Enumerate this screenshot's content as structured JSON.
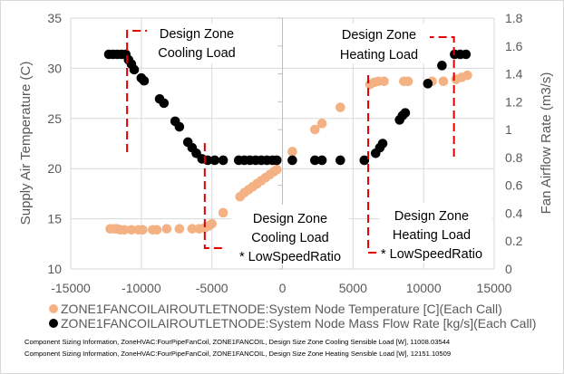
{
  "chart_data": {
    "type": "scatter",
    "xlim": [
      -15000,
      15000
    ],
    "xticks": [
      "-15000",
      "-10000",
      "-5000",
      "0",
      "5000",
      "10000",
      "15000"
    ],
    "y_left": {
      "label": "Supply Air Temperature (C)",
      "lim": [
        10,
        35
      ],
      "ticks": [
        "10",
        "15",
        "20",
        "25",
        "30",
        "35"
      ]
    },
    "y_right": {
      "label": "Fan Airflow Rate (m3/s)",
      "lim": [
        0,
        1.8
      ],
      "ticks": [
        "0",
        "0.2",
        "0.4",
        "0.6",
        "0.8",
        "1",
        "1.2",
        "1.4",
        "1.6",
        "1.8"
      ]
    },
    "grid": true,
    "legend_position": "bottom",
    "series": [
      {
        "name": "ZONE1FANCOILAIROUTLETNODE:System Node Temperature [C](Each Call)",
        "axis": "left",
        "color": "#f4b183",
        "points": [
          [
            -12200,
            14.0
          ],
          [
            -11900,
            14.0
          ],
          [
            -11700,
            14.0
          ],
          [
            -11500,
            13.9
          ],
          [
            -11200,
            13.9
          ],
          [
            -10700,
            13.9
          ],
          [
            -10200,
            13.9
          ],
          [
            -9900,
            13.9
          ],
          [
            -9200,
            13.9
          ],
          [
            -8900,
            13.9
          ],
          [
            -8200,
            14.0
          ],
          [
            -7300,
            14.0
          ],
          [
            -6400,
            14.0
          ],
          [
            -5900,
            14.0
          ],
          [
            -5500,
            14.1
          ],
          [
            -5200,
            14.3
          ],
          [
            -5000,
            14.5
          ],
          [
            -4200,
            15.6
          ],
          [
            -3000,
            17.2
          ],
          [
            -2700,
            17.6
          ],
          [
            -2400,
            17.9
          ],
          [
            -2100,
            18.2
          ],
          [
            -1800,
            18.5
          ],
          [
            -1500,
            18.8
          ],
          [
            -1200,
            19.1
          ],
          [
            -900,
            19.4
          ],
          [
            -600,
            19.7
          ],
          [
            -400,
            19.9
          ],
          [
            700,
            21.7
          ],
          [
            2300,
            23.9
          ],
          [
            2800,
            24.5
          ],
          [
            4100,
            26.1
          ],
          [
            6200,
            28.4
          ],
          [
            6500,
            28.6
          ],
          [
            6800,
            28.7
          ],
          [
            7200,
            28.7
          ],
          [
            8600,
            28.7
          ],
          [
            8900,
            28.7
          ],
          [
            10600,
            28.7
          ],
          [
            11400,
            28.7
          ],
          [
            12300,
            28.9
          ],
          [
            12700,
            29.1
          ],
          [
            13100,
            29.3
          ]
        ]
      },
      {
        "name": "ZONE1FANCOILAIROUTLETNODE:System Node Mass Flow Rate [kg/s](Each Call)",
        "axis": "right",
        "color": "#000000",
        "points": [
          [
            -12300,
            1.54
          ],
          [
            -12000,
            1.54
          ],
          [
            -11700,
            1.54
          ],
          [
            -11400,
            1.54
          ],
          [
            -11100,
            1.54
          ],
          [
            -10900,
            1.5
          ],
          [
            -10700,
            1.47
          ],
          [
            -10500,
            1.43
          ],
          [
            -10000,
            1.37
          ],
          [
            -9800,
            1.35
          ],
          [
            -8700,
            1.22
          ],
          [
            -8400,
            1.19
          ],
          [
            -7600,
            1.06
          ],
          [
            -7300,
            1.02
          ],
          [
            -6700,
            0.91
          ],
          [
            -6400,
            0.87
          ],
          [
            -6100,
            0.83
          ],
          [
            -5700,
            0.79
          ],
          [
            -5300,
            0.78
          ],
          [
            -4800,
            0.78
          ],
          [
            -4200,
            0.78
          ],
          [
            -3100,
            0.78
          ],
          [
            -2700,
            0.78
          ],
          [
            -2300,
            0.78
          ],
          [
            -1900,
            0.78
          ],
          [
            -1500,
            0.78
          ],
          [
            -1100,
            0.78
          ],
          [
            -700,
            0.78
          ],
          [
            -400,
            0.78
          ],
          [
            700,
            0.78
          ],
          [
            2300,
            0.78
          ],
          [
            2800,
            0.78
          ],
          [
            4100,
            0.78
          ],
          [
            5800,
            0.78
          ],
          [
            6600,
            0.83
          ],
          [
            6900,
            0.87
          ],
          [
            7100,
            0.9
          ],
          [
            8300,
            1.07
          ],
          [
            8500,
            1.1
          ],
          [
            8700,
            1.12
          ],
          [
            10300,
            1.33
          ],
          [
            11300,
            1.46
          ],
          [
            12200,
            1.54
          ],
          [
            12600,
            1.54
          ],
          [
            13000,
            1.54
          ]
        ]
      }
    ],
    "annotations": {
      "cooling": {
        "line1": "Design Zone",
        "line2": "Cooling Load",
        "x": -11008.03544
      },
      "cooling_low": {
        "line1": "Design Zone",
        "line2": "Cooling Load",
        "line3": "* LowSpeedRatio",
        "x": -5504
      },
      "heating": {
        "line1": "Design Zone",
        "line2": "Heating Load",
        "x": 12151.10509
      },
      "heating_low": {
        "line1": "Design Zone",
        "line2": "Heating Load",
        "line3": "* LowSpeedRatio",
        "x": 6075
      },
      "line_color": "#e00000"
    },
    "footnotes": [
      "Component Sizing Information, ZoneHVAC:FourPipeFanCoil, ZONE1FANCOIL, Design Size Zone Cooling Sensible Load [W], 11008.03544",
      "Component Sizing Information, ZoneHVAC:FourPipeFanCoil, ZONE1FANCOIL, Design Size Zone Heating Sensible Load [W], 12151.10509"
    ]
  }
}
